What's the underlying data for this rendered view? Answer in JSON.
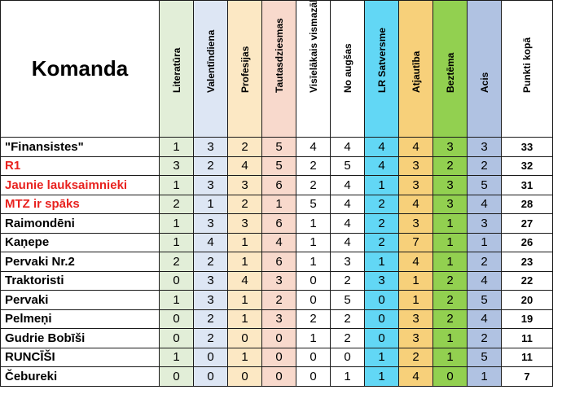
{
  "table": {
    "team_header": "Komanda",
    "categories": [
      {
        "label": "Literatūra",
        "color": "#e2eed8"
      },
      {
        "label": "Valentīndiena",
        "color": "#dde6f4"
      },
      {
        "label": "Profesijas",
        "color": "#fce8c4"
      },
      {
        "label": "Tautasdziesmas",
        "color": "#f8d9cc"
      },
      {
        "label": "Visīelākais vismazākais",
        "color": "#ffffff"
      },
      {
        "label": "No augšas",
        "color": "#ffffff"
      },
      {
        "label": "LR Satversme",
        "color": "#62d7f5"
      },
      {
        "label": "Atjautība",
        "color": "#f7d07a"
      },
      {
        "label": "Beztēma",
        "color": "#92d050"
      },
      {
        "label": "Acis",
        "color": "#b0c2e2"
      },
      {
        "label": "Punkti kopā",
        "color": "#ffffff"
      }
    ],
    "rows": [
      {
        "team": "\"Finansistes\"",
        "highlight": false,
        "scores": [
          "1",
          "3",
          "2",
          "5",
          "4",
          "4",
          "4",
          "4",
          "3",
          "3"
        ],
        "total": "33"
      },
      {
        "team": "R1",
        "highlight": true,
        "scores": [
          "3",
          "2",
          "4",
          "5",
          "2",
          "5",
          "4",
          "3",
          "2",
          "2"
        ],
        "total": "32"
      },
      {
        "team": "Jaunie lauksaimnieki",
        "highlight": true,
        "scores": [
          "1",
          "3",
          "3",
          "6",
          "2",
          "4",
          "1",
          "3",
          "3",
          "5"
        ],
        "total": "31"
      },
      {
        "team": "MTZ ir spāks",
        "highlight": true,
        "scores": [
          "2",
          "1",
          "2",
          "1",
          "5",
          "4",
          "2",
          "4",
          "3",
          "4"
        ],
        "total": "28"
      },
      {
        "team": "Raimondēni",
        "highlight": false,
        "scores": [
          "1",
          "3",
          "3",
          "6",
          "1",
          "4",
          "2",
          "3",
          "1",
          "3"
        ],
        "total": "27"
      },
      {
        "team": "Kaņepe",
        "highlight": false,
        "scores": [
          "1",
          "4",
          "1",
          "4",
          "1",
          "4",
          "2",
          "7",
          "1",
          "1"
        ],
        "total": "26"
      },
      {
        "team": "Pervaki Nr.2",
        "highlight": false,
        "scores": [
          "2",
          "2",
          "1",
          "6",
          "1",
          "3",
          "1",
          "4",
          "1",
          "2"
        ],
        "total": "23"
      },
      {
        "team": "Traktoristi",
        "highlight": false,
        "scores": [
          "0",
          "3",
          "4",
          "3",
          "0",
          "2",
          "3",
          "1",
          "2",
          "4"
        ],
        "total": "22"
      },
      {
        "team": "Pervaki",
        "highlight": false,
        "scores": [
          "1",
          "3",
          "1",
          "2",
          "0",
          "5",
          "0",
          "1",
          "2",
          "5"
        ],
        "total": "20"
      },
      {
        "team": "Pelmeņi",
        "highlight": false,
        "scores": [
          "0",
          "2",
          "1",
          "3",
          "2",
          "2",
          "0",
          "3",
          "2",
          "4"
        ],
        "total": "19"
      },
      {
        "team": "Gudrie Bobīši",
        "highlight": false,
        "scores": [
          "0",
          "2",
          "0",
          "0",
          "1",
          "2",
          "0",
          "3",
          "1",
          "2"
        ],
        "total": "11"
      },
      {
        "team": "RUNCĪŠI",
        "highlight": false,
        "scores": [
          "1",
          "0",
          "1",
          "0",
          "0",
          "0",
          "1",
          "2",
          "1",
          "5"
        ],
        "total": "11"
      },
      {
        "team": "Čebureki",
        "highlight": false,
        "scores": [
          "0",
          "0",
          "0",
          "0",
          "0",
          "1",
          "1",
          "4",
          "0",
          "1"
        ],
        "total": "7"
      }
    ]
  }
}
